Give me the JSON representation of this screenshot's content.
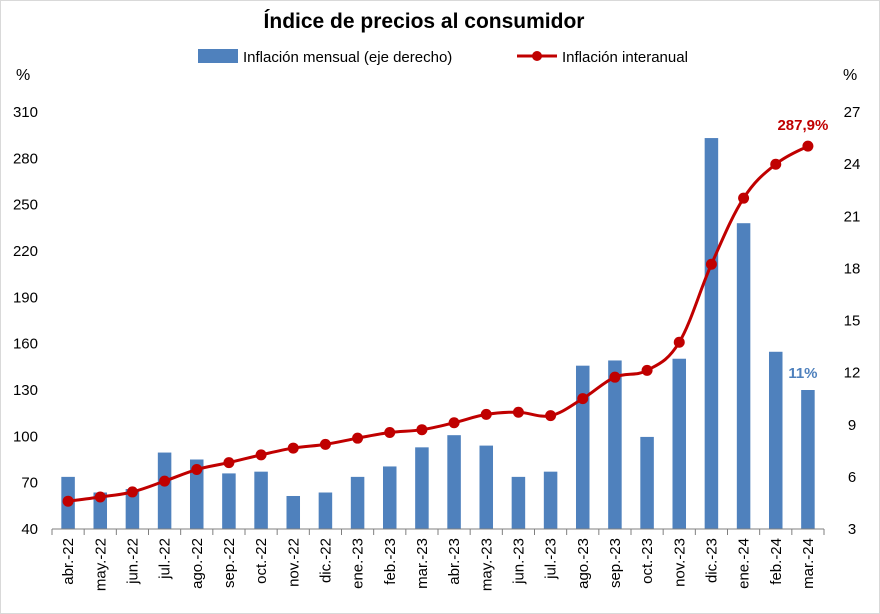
{
  "chart_data": {
    "type": "bar",
    "title": "Índice de precios al consumidor",
    "categories": [
      "abr.-22",
      "may.-22",
      "jun.-22",
      "jul.-22",
      "ago.-22",
      "sep.-22",
      "oct.-22",
      "nov.-22",
      "dic.-22",
      "ene.-23",
      "feb.-23",
      "mar.-23",
      "abr.-23",
      "may.-23",
      "jun.-23",
      "jul.-23",
      "ago.-23",
      "sep.-23",
      "oct.-23",
      "nov.-23",
      "dic.-23",
      "ene.-24",
      "feb.-24",
      "mar.-24"
    ],
    "series": [
      {
        "name": "Inflación mensual (eje derecho)",
        "type": "bar",
        "axis": "right",
        "color": "#4f81bd",
        "values": [
          6.0,
          5.1,
          5.3,
          7.4,
          7.0,
          6.2,
          6.3,
          4.9,
          5.1,
          6.0,
          6.6,
          7.7,
          8.4,
          7.8,
          6.0,
          6.3,
          12.4,
          12.7,
          8.3,
          12.8,
          25.5,
          20.6,
          13.2,
          11.0
        ]
      },
      {
        "name": "Inflación interanual",
        "type": "line",
        "axis": "left",
        "color": "#c00000",
        "values": [
          58.0,
          60.7,
          64.0,
          71.0,
          78.5,
          83.0,
          88.0,
          92.4,
          94.8,
          98.8,
          102.5,
          104.3,
          108.8,
          114.2,
          115.6,
          113.4,
          124.4,
          138.3,
          142.7,
          160.9,
          211.4,
          254.2,
          276.2,
          287.9
        ]
      }
    ],
    "ylabel": "%",
    "y2label": "%",
    "ylim": [
      40,
      310
    ],
    "y2lim": [
      3,
      27
    ],
    "yticks": [
      "40",
      "70",
      "100",
      "130",
      "160",
      "190",
      "220",
      "250",
      "280",
      "310"
    ],
    "y2ticks": [
      "3",
      "6",
      "9",
      "12",
      "15",
      "18",
      "21",
      "24",
      "27"
    ],
    "annotations": [
      {
        "text": "287,9%",
        "series": "Inflación interanual",
        "category": "mar.-24",
        "color": "#c00000"
      },
      {
        "text": "11%",
        "series": "Inflación mensual (eje derecho)",
        "category": "mar.-24",
        "color": "#4f81bd"
      }
    ],
    "legend_position": "top",
    "grid": false
  }
}
